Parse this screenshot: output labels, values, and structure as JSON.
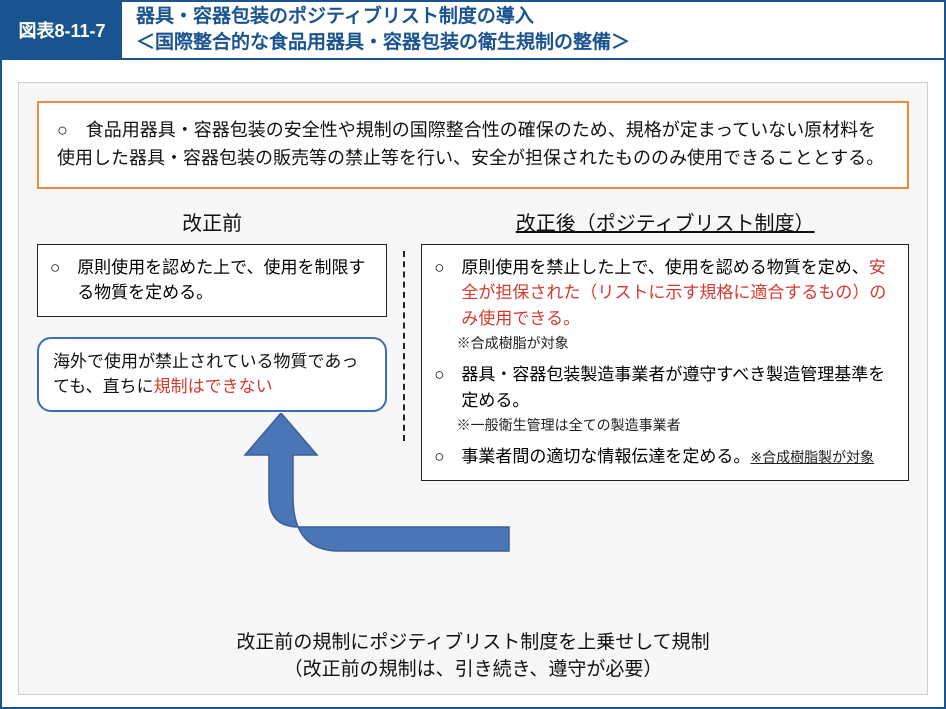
{
  "colors": {
    "primary": "#1a5490",
    "accent_border": "#f08a3c",
    "callout_border": "#3a6fb7",
    "arrow_fill": "#4a76b8",
    "arrow_stroke": "#3a5f99",
    "panel_bg": "#f7f7f7",
    "text_red": "#d63a2f"
  },
  "header": {
    "badge": "図表8-11-7",
    "title_line1": "器具・容器包装のポジティブリスト制度の導入",
    "title_line2": "＜国際整合的な食品用器具・容器包装の衛生規制の整備＞"
  },
  "intro": {
    "bullet": "○",
    "text": "食品用器具・容器包装の安全性や規制の国際整合性の確保のため、規格が定まっていない原材料を使用した器具・容器包装の販売等の禁止等を行い、安全が担保されたもののみ使用できることとする。"
  },
  "left": {
    "title": "改正前",
    "box_bullet": "○",
    "box_text": "原則使用を認めた上で、使用を制限する物質を定める。",
    "callout_pre": "海外で使用が禁止されている物質であっても、直ちに",
    "callout_red": "規制はできない"
  },
  "right": {
    "title": "改正後（ポジティブリスト制度）",
    "items": [
      {
        "bullet": "○",
        "body_pre": "原則使用を禁止した上で、使用を認める物質を定め、",
        "body_red": "安全が担保された（リストに示す規格に適合するもの）のみ使用できる。",
        "note": "※合成樹脂が対象"
      },
      {
        "bullet": "○",
        "body_pre": "器具・容器包装製造事業者が遵守すべき製造管理基準を定める。",
        "body_red": "",
        "note": "※一般衛生管理は全ての製造事業者"
      },
      {
        "bullet": "○",
        "body_pre": "事業者間の適切な情報伝達を定める。",
        "body_red": "",
        "note_inline": "※合成樹脂製が対象"
      }
    ]
  },
  "bottom": {
    "line1": "改正前の規制にポジティブリスト制度を上乗せして規制",
    "line2": "（改正前の規制は、引き続き、遵守が必要）"
  }
}
